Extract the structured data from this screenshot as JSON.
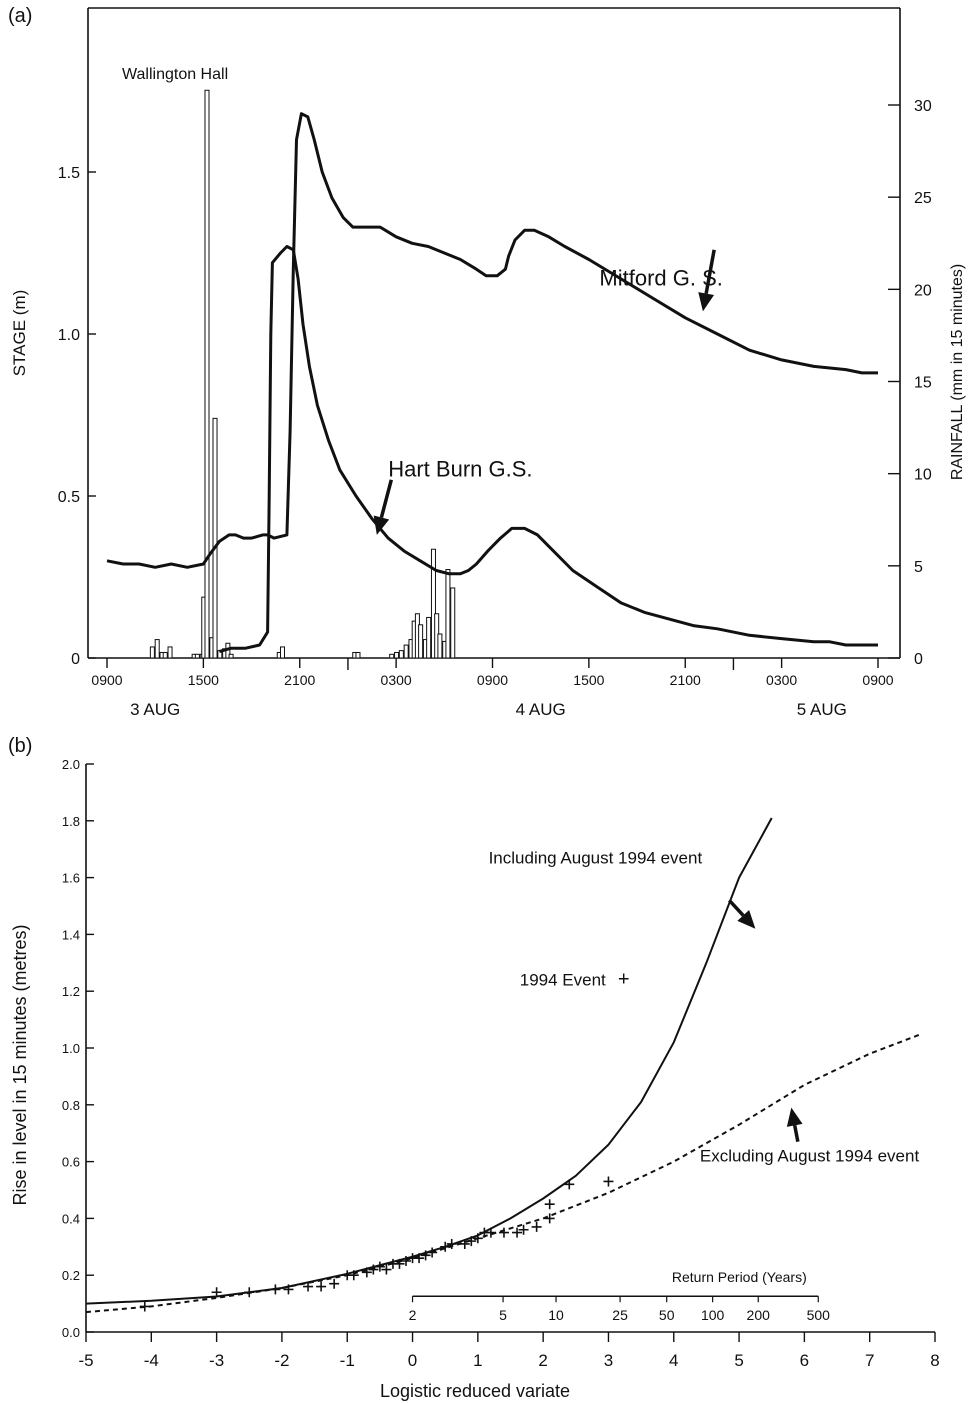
{
  "colors": {
    "ink": "#111111",
    "bar_fill": "#ffffff"
  },
  "chart_data": [
    {
      "panel_label": "(a)",
      "type": "line",
      "title": "",
      "xlabel": "",
      "ylabel": "STAGE (m)",
      "y2label": "RAINFALL (mm in 15 minutes)",
      "x_unit": "hours from 0900 3 AUG",
      "xlim": [
        0,
        48
      ],
      "ylim": [
        0,
        1.9
      ],
      "y2lim": [
        0,
        35
      ],
      "x_ticks": [
        0,
        6,
        12,
        18,
        24,
        30,
        36,
        42,
        48
      ],
      "x_tick_labels": [
        "0900",
        "1500",
        "2100",
        "0300",
        "0900",
        "1500",
        "2100",
        "0300",
        "0900"
      ],
      "day_labels": [
        {
          "x": 3,
          "label": "3 AUG"
        },
        {
          "x": 27,
          "label": "4 AUG"
        },
        {
          "x": 44.5,
          "label": "5 AUG"
        }
      ],
      "y_ticks": [
        0,
        0.5,
        1.0,
        1.5
      ],
      "y_tick_labels": [
        "0",
        "0.5",
        "1.0",
        "1.5"
      ],
      "y2_ticks": [
        0,
        5,
        10,
        15,
        20,
        25,
        30
      ],
      "y2_tick_labels": [
        "0",
        "5",
        "10",
        "15",
        "20",
        "25",
        "30"
      ],
      "rain_gauge_label": "Wallington Hall",
      "series": [
        {
          "name": "Mitford G. S.",
          "points": [
            [
              0,
              0.3
            ],
            [
              1,
              0.29
            ],
            [
              2,
              0.29
            ],
            [
              3,
              0.28
            ],
            [
              4,
              0.29
            ],
            [
              5,
              0.28
            ],
            [
              6,
              0.29
            ],
            [
              6.4,
              0.32
            ],
            [
              7,
              0.36
            ],
            [
              7.6,
              0.38
            ],
            [
              8,
              0.38
            ],
            [
              8.5,
              0.37
            ],
            [
              9,
              0.37
            ],
            [
              9.7,
              0.38
            ],
            [
              10,
              0.38
            ],
            [
              10.4,
              0.37
            ],
            [
              11.2,
              0.38
            ],
            [
              11.4,
              0.7
            ],
            [
              11.6,
              1.2
            ],
            [
              11.8,
              1.6
            ],
            [
              12.1,
              1.68
            ],
            [
              12.5,
              1.67
            ],
            [
              12.9,
              1.6
            ],
            [
              13.4,
              1.5
            ],
            [
              14,
              1.42
            ],
            [
              14.7,
              1.36
            ],
            [
              15.3,
              1.33
            ],
            [
              16,
              1.33
            ],
            [
              17,
              1.33
            ],
            [
              18,
              1.3
            ],
            [
              19,
              1.28
            ],
            [
              20,
              1.27
            ],
            [
              21,
              1.25
            ],
            [
              22,
              1.23
            ],
            [
              23,
              1.2
            ],
            [
              23.6,
              1.18
            ],
            [
              24.3,
              1.18
            ],
            [
              24.8,
              1.2
            ],
            [
              25,
              1.24
            ],
            [
              25.4,
              1.29
            ],
            [
              26,
              1.32
            ],
            [
              26.6,
              1.32
            ],
            [
              27.5,
              1.3
            ],
            [
              28.5,
              1.27
            ],
            [
              30,
              1.23
            ],
            [
              32,
              1.17
            ],
            [
              34,
              1.11
            ],
            [
              36,
              1.05
            ],
            [
              38,
              1.0
            ],
            [
              40,
              0.95
            ],
            [
              42,
              0.92
            ],
            [
              44,
              0.9
            ],
            [
              46,
              0.89
            ],
            [
              47,
              0.88
            ],
            [
              48,
              0.88
            ]
          ]
        },
        {
          "name": "Hart Burn G.S.",
          "points": [
            [
              7,
              0.02
            ],
            [
              7.7,
              0.03
            ],
            [
              8.6,
              0.03
            ],
            [
              9.5,
              0.04
            ],
            [
              10,
              0.08
            ],
            [
              10.1,
              0.5
            ],
            [
              10.2,
              1.0
            ],
            [
              10.3,
              1.22
            ],
            [
              10.8,
              1.25
            ],
            [
              11.2,
              1.27
            ],
            [
              11.6,
              1.26
            ],
            [
              11.9,
              1.17
            ],
            [
              12.2,
              1.03
            ],
            [
              12.6,
              0.9
            ],
            [
              13.1,
              0.78
            ],
            [
              13.8,
              0.67
            ],
            [
              14.5,
              0.58
            ],
            [
              15.5,
              0.5
            ],
            [
              16.5,
              0.43
            ],
            [
              17.5,
              0.37
            ],
            [
              18.5,
              0.33
            ],
            [
              19.5,
              0.3
            ],
            [
              20.5,
              0.27
            ],
            [
              21.3,
              0.26
            ],
            [
              22,
              0.26
            ],
            [
              22.5,
              0.27
            ],
            [
              23,
              0.29
            ],
            [
              23.7,
              0.33
            ],
            [
              24.5,
              0.37
            ],
            [
              25.2,
              0.4
            ],
            [
              26,
              0.4
            ],
            [
              26.8,
              0.38
            ],
            [
              27.8,
              0.33
            ],
            [
              29,
              0.27
            ],
            [
              30.5,
              0.22
            ],
            [
              32,
              0.17
            ],
            [
              33.5,
              0.14
            ],
            [
              35,
              0.12
            ],
            [
              36.5,
              0.1
            ],
            [
              38,
              0.09
            ],
            [
              40,
              0.07
            ],
            [
              42,
              0.06
            ],
            [
              44,
              0.05
            ],
            [
              45,
              0.05
            ],
            [
              46,
              0.04
            ],
            [
              48,
              0.04
            ]
          ]
        }
      ],
      "series_label_positions": [
        [
          34.5,
          1.15
        ],
        [
          22,
          0.56
        ]
      ],
      "series_arrows": [
        [
          [
            37.8,
            1.26
          ],
          [
            37.1,
            1.07
          ]
        ],
        [
          [
            17.7,
            0.55
          ],
          [
            16.8,
            0.38
          ]
        ]
      ],
      "rainfall_bars": [
        [
          2.7,
          0.6
        ],
        [
          3.0,
          1.0
        ],
        [
          3.3,
          0.3
        ],
        [
          3.5,
          0.3
        ],
        [
          3.8,
          0.6
        ],
        [
          5.3,
          0.2
        ],
        [
          5.5,
          0.2
        ],
        [
          5.8,
          0.2
        ],
        [
          5.9,
          3.3
        ],
        [
          6.1,
          30.8
        ],
        [
          6.4,
          1.1
        ],
        [
          6.6,
          13.0
        ],
        [
          6.9,
          0.4
        ],
        [
          7.2,
          0.5
        ],
        [
          7.4,
          0.8
        ],
        [
          7.6,
          0.2
        ],
        [
          10.6,
          0.3
        ],
        [
          10.8,
          0.6
        ],
        [
          15.3,
          0.3
        ],
        [
          15.5,
          0.3
        ],
        [
          17.6,
          0.2
        ],
        [
          17.9,
          0.3
        ],
        [
          18.2,
          0.4
        ],
        [
          18.5,
          0.7
        ],
        [
          18.8,
          1.0
        ],
        [
          19.0,
          2.0
        ],
        [
          19.2,
          2.4
        ],
        [
          19.4,
          1.8
        ],
        [
          19.7,
          1.0
        ],
        [
          19.9,
          2.2
        ],
        [
          20.2,
          5.9
        ],
        [
          20.4,
          2.4
        ],
        [
          20.6,
          1.3
        ],
        [
          20.9,
          0.9
        ],
        [
          21.1,
          4.8
        ],
        [
          21.4,
          3.8
        ]
      ]
    },
    {
      "panel_label": "(b)",
      "type": "line",
      "title": "",
      "xlabel": "Logistic reduced variate",
      "ylabel": "Rise in level in 15 minutes (metres)",
      "xlim": [
        -5,
        8
      ],
      "ylim": [
        0,
        2.0
      ],
      "x_ticks": [
        -5,
        -4,
        -3,
        -2,
        -1,
        0,
        1,
        2,
        3,
        4,
        5,
        6,
        7,
        8
      ],
      "x_tick_labels": [
        "-5",
        "-4",
        "-3",
        "-2",
        "-1",
        "0",
        "1",
        "2",
        "3",
        "4",
        "5",
        "6",
        "7",
        "8"
      ],
      "y_ticks": [
        0,
        0.2,
        0.4,
        0.6,
        0.8,
        1.0,
        1.2,
        1.4,
        1.6,
        1.8,
        2.0
      ],
      "y_tick_labels": [
        "0.0",
        "0.2",
        "0.4",
        "0.6",
        "0.8",
        "1.0",
        "1.2",
        "1.4",
        "1.6",
        "1.8",
        "2.0"
      ],
      "return_period": {
        "title": "Return Period (Years)",
        "labels": [
          "2",
          "5",
          "10",
          "25",
          "50",
          "100",
          "200",
          "500"
        ],
        "values": [
          2,
          5,
          10,
          25,
          50,
          100,
          200,
          500
        ],
        "y_level": 0.14
      },
      "series": [
        {
          "name": "Including August 1994 event",
          "style": "solid",
          "points": [
            [
              -5,
              0.1
            ],
            [
              -4,
              0.11
            ],
            [
              -3,
              0.125
            ],
            [
              -2,
              0.155
            ],
            [
              -1,
              0.205
            ],
            [
              0,
              0.265
            ],
            [
              0.5,
              0.3
            ],
            [
              1,
              0.34
            ],
            [
              1.5,
              0.4
            ],
            [
              2,
              0.47
            ],
            [
              2.5,
              0.55
            ],
            [
              3,
              0.66
            ],
            [
              3.5,
              0.81
            ],
            [
              4,
              1.02
            ],
            [
              4.5,
              1.3
            ],
            [
              5,
              1.6
            ],
            [
              5.5,
              1.81
            ]
          ]
        },
        {
          "name": "Excluding August 1994 event",
          "style": "dashed",
          "points": [
            [
              -5,
              0.07
            ],
            [
              -4,
              0.09
            ],
            [
              -3,
              0.12
            ],
            [
              -2,
              0.155
            ],
            [
              -1,
              0.2
            ],
            [
              0,
              0.26
            ],
            [
              1,
              0.33
            ],
            [
              2,
              0.4
            ],
            [
              3,
              0.49
            ],
            [
              4,
              0.6
            ],
            [
              5,
              0.73
            ],
            [
              6,
              0.87
            ],
            [
              7,
              0.98
            ],
            [
              7.8,
              1.05
            ]
          ]
        }
      ],
      "observations_label": "1994 Event",
      "observations": [
        [
          -4.1,
          0.09
        ],
        [
          -3.0,
          0.14
        ],
        [
          -2.5,
          0.14
        ],
        [
          -2.1,
          0.15
        ],
        [
          -1.9,
          0.15
        ],
        [
          -1.6,
          0.16
        ],
        [
          -1.4,
          0.16
        ],
        [
          -1.2,
          0.17
        ],
        [
          -1.0,
          0.2
        ],
        [
          -0.9,
          0.2
        ],
        [
          -0.7,
          0.21
        ],
        [
          -0.6,
          0.22
        ],
        [
          -0.5,
          0.23
        ],
        [
          -0.4,
          0.22
        ],
        [
          -0.3,
          0.24
        ],
        [
          -0.2,
          0.24
        ],
        [
          -0.1,
          0.25
        ],
        [
          0.0,
          0.26
        ],
        [
          0.1,
          0.26
        ],
        [
          0.2,
          0.27
        ],
        [
          0.3,
          0.28
        ],
        [
          0.5,
          0.3
        ],
        [
          0.6,
          0.31
        ],
        [
          0.8,
          0.31
        ],
        [
          0.9,
          0.32
        ],
        [
          1.0,
          0.33
        ],
        [
          1.1,
          0.35
        ],
        [
          1.2,
          0.35
        ],
        [
          1.4,
          0.35
        ],
        [
          1.6,
          0.35
        ],
        [
          1.7,
          0.36
        ],
        [
          1.9,
          0.37
        ],
        [
          2.1,
          0.4
        ],
        [
          2.1,
          0.45
        ],
        [
          2.4,
          0.52
        ],
        [
          3.0,
          0.53
        ]
      ],
      "label_positions": {
        "including": [
          2.8,
          1.65
        ],
        "excluding": [
          4.4,
          0.6
        ],
        "event": [
          2.3,
          1.22
        ]
      },
      "arrows": {
        "including": [
          [
            4.85,
            1.52
          ],
          [
            5.25,
            1.42
          ]
        ],
        "excluding": [
          [
            5.9,
            0.67
          ],
          [
            5.8,
            0.79
          ]
        ]
      }
    }
  ]
}
